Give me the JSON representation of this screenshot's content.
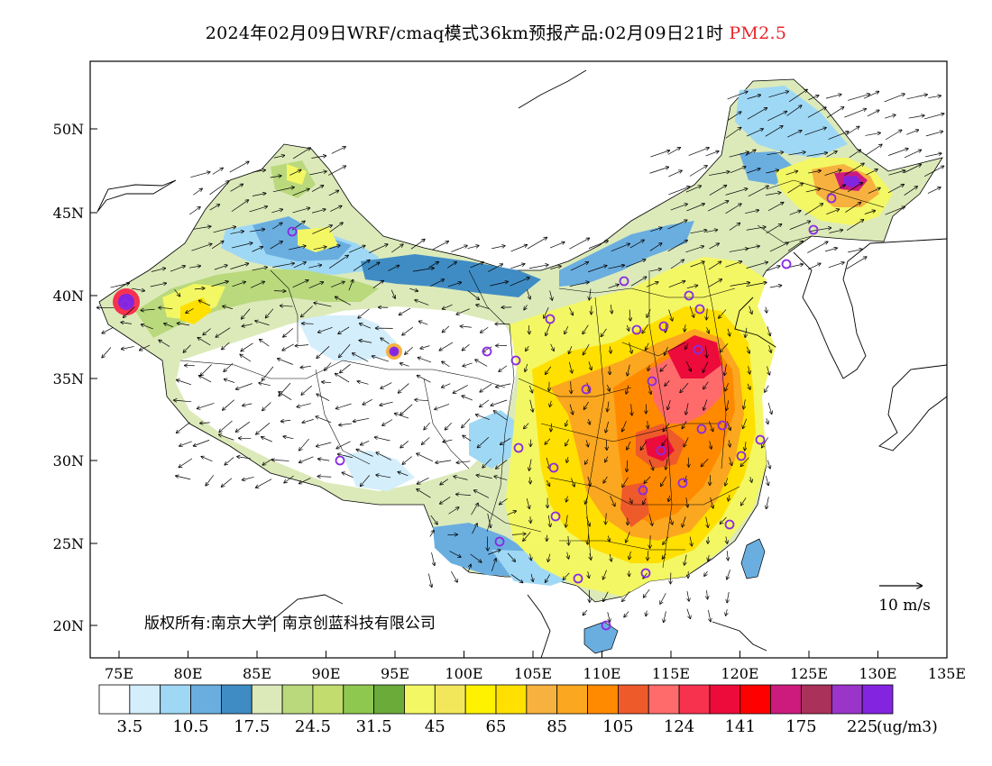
{
  "title": {
    "main": "2024年02月09日WRF/cmaq模式36km预报产品:02月09日21时",
    "species": "PM2.5"
  },
  "axes": {
    "lat_ticks": [
      "50N",
      "45N",
      "40N",
      "35N",
      "30N",
      "25N",
      "20N"
    ],
    "lon_ticks": [
      "75E",
      "80E",
      "85E",
      "90E",
      "95E",
      "100E",
      "105E",
      "110E",
      "115E",
      "120E",
      "125E",
      "130E",
      "135E"
    ]
  },
  "vector_reference": {
    "label": "10 m/s"
  },
  "copyright": "版权所有:南京大学| 南京创蓝科技有限公司",
  "colorbar": {
    "unit": "(ug/m3)",
    "colors": [
      "#ffffff",
      "#d4eefb",
      "#9fd8f5",
      "#6aaee0",
      "#3f8cc4",
      "#dceaba",
      "#b9d97c",
      "#c2dc6e",
      "#8fc84f",
      "#6bab3a",
      "#f3f763",
      "#f2e75a",
      "#fff200",
      "#ffe000",
      "#f7b13e",
      "#fba71f",
      "#ff8a00",
      "#ee5a2a",
      "#ff6b6b",
      "#f7324f",
      "#ec0b3a",
      "#ff0000",
      "#cc1b7d",
      "#aa3159",
      "#9b35c9",
      "#8325e0"
    ],
    "labels": [
      "3.5",
      "10.5",
      "17.5",
      "24.5",
      "31.5",
      "45",
      "65",
      "85",
      "105",
      "124",
      "141",
      "175",
      "225"
    ]
  }
}
